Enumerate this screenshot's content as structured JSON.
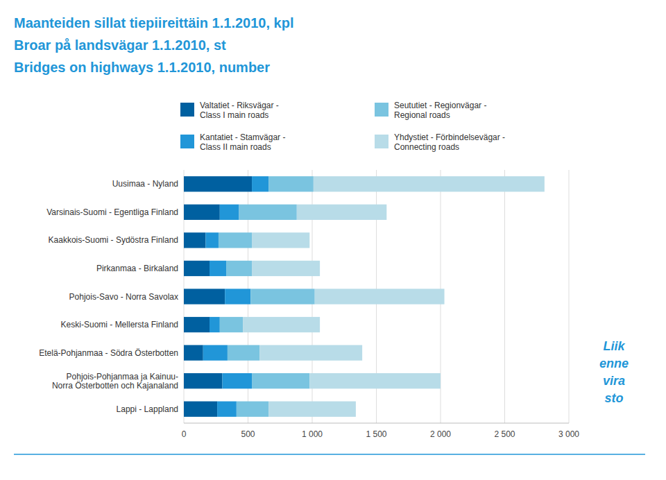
{
  "chart_data": {
    "type": "bar",
    "orientation": "horizontal",
    "stacked": true,
    "grid": true,
    "title": [
      "Maanteiden sillat tiepiireittäin 1.1.2010, kpl",
      "Broar på landsvägar 1.1.2010, st",
      "Bridges on highways 1.1.2010, number"
    ],
    "categories": [
      "Uusimaa - Nyland",
      "Varsinais-Suomi - Egentliga Finland",
      "Kaakkois-Suomi - Sydöstra Finland",
      "Pirkanmaa - Birkaland",
      "Pohjois-Savo - Norra Savolax",
      "Keski-Suomi - Mellersta Finland",
      "Etelä-Pohjanmaa - Södra Österbotten",
      "Pohjois-Pohjanmaa ja Kainuu-\nNorra Österbotten och Kajanaland",
      "Lappi - Lappland"
    ],
    "series": [
      {
        "name": "Valtatiet - Riksvägar -\nClass I main roads",
        "color": "#0060a0",
        "values": [
          530,
          280,
          170,
          200,
          320,
          200,
          150,
          300,
          260
        ]
      },
      {
        "name": "Kantatiet - Stamvägar -\nClass II main roads",
        "color": "#2196d8",
        "values": [
          130,
          150,
          100,
          130,
          200,
          80,
          190,
          230,
          150
        ]
      },
      {
        "name": "Seututiet - Regionvägar -\nRegional roads",
        "color": "#7ac4e0",
        "values": [
          350,
          450,
          260,
          200,
          500,
          180,
          250,
          450,
          250
        ]
      },
      {
        "name": "Yhdystiet - Förbindelsevägar -\nConnecting roads",
        "color": "#b8dce8",
        "values": [
          1800,
          700,
          450,
          530,
          1010,
          600,
          800,
          1020,
          680
        ]
      }
    ],
    "xlim": [
      0,
      3000
    ],
    "xticks": [
      0,
      500,
      {
        "value": 1000,
        "label": "1 000"
      },
      {
        "value": 1500,
        "label": "1 500"
      },
      {
        "value": 2000,
        "label": "2 000"
      },
      {
        "value": 2500,
        "label": "2 500"
      },
      {
        "value": 3000,
        "label": "3 000"
      }
    ],
    "annotations": [
      "Liik",
      "enne",
      "vira",
      "sto"
    ]
  }
}
